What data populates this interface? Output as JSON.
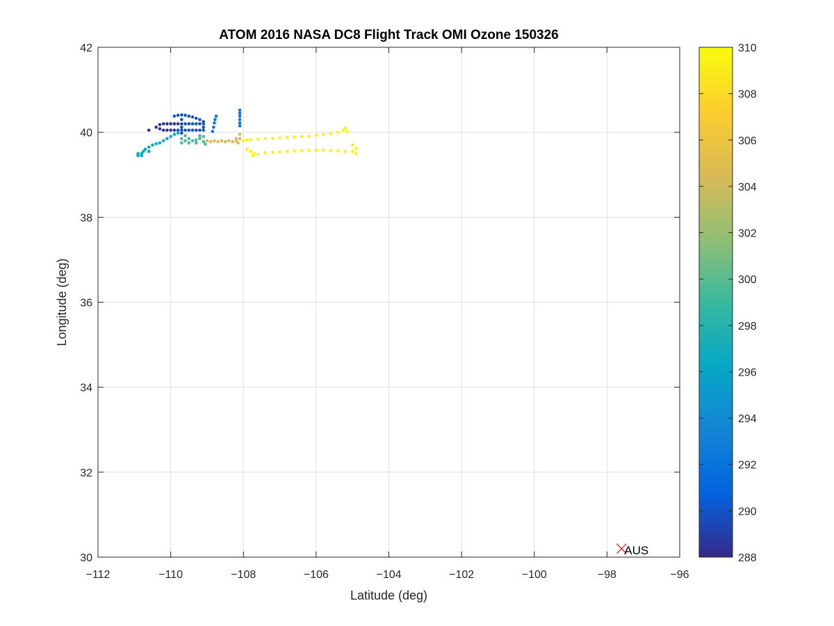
{
  "chart_data": {
    "type": "scatter",
    "title": "ATOM 2016 NASA DC8 Flight Track OMI Ozone 150326",
    "xlabel": "Latitude (deg)",
    "ylabel": "Longitude (deg)",
    "xlim": [
      -112,
      -96
    ],
    "ylim": [
      30,
      42
    ],
    "xticks": [
      -112,
      -110,
      -108,
      -106,
      -104,
      -102,
      -100,
      -98,
      -96
    ],
    "yticks": [
      30,
      32,
      34,
      36,
      38,
      40,
      42
    ],
    "xtick_labels": [
      "−112",
      "−110",
      "−108",
      "−106",
      "−104",
      "−102",
      "−100",
      "−98",
      "−96"
    ],
    "ytick_labels": [
      "30",
      "32",
      "34",
      "36",
      "38",
      "40",
      "42"
    ],
    "grid": true,
    "colormap": "parula",
    "colorbar": {
      "label": "",
      "clim": [
        288,
        310
      ],
      "ticks": [
        288,
        290,
        292,
        294,
        296,
        298,
        300,
        302,
        304,
        306,
        308,
        310
      ],
      "colors": [
        "#352a87",
        "#0363e1",
        "#1485d4",
        "#06a7c6",
        "#38b99e",
        "#92bf73",
        "#d9ba56",
        "#fcce2e",
        "#f9fb0e"
      ]
    },
    "marker_annotations": [
      {
        "label": "AUS",
        "x": -97.6,
        "y": 30.2,
        "marker": "x",
        "color": "#ff0000"
      }
    ],
    "series": [
      {
        "value": 288.5,
        "points": [
          [
            -110.6,
            40.05
          ],
          [
            -110.4,
            40.12
          ],
          [
            -110.3,
            40.18
          ],
          [
            -110.2,
            40.2
          ],
          [
            -110.1,
            40.2
          ],
          [
            -110.0,
            40.2
          ],
          [
            -109.9,
            40.2
          ],
          [
            -109.8,
            40.2
          ],
          [
            -110.3,
            40.08
          ],
          [
            -110.2,
            40.05
          ],
          [
            -110.1,
            40.05
          ],
          [
            -110.0,
            40.05
          ],
          [
            -109.9,
            40.05
          ]
        ]
      },
      {
        "value": 290,
        "points": [
          [
            -109.7,
            40.2
          ],
          [
            -109.6,
            40.2
          ],
          [
            -109.5,
            40.2
          ],
          [
            -109.4,
            40.2
          ],
          [
            -109.3,
            40.2
          ],
          [
            -109.2,
            40.2
          ],
          [
            -109.1,
            40.2
          ],
          [
            -109.8,
            40.05
          ],
          [
            -109.7,
            40.05
          ],
          [
            -109.6,
            40.05
          ],
          [
            -109.5,
            40.05
          ],
          [
            -109.4,
            40.05
          ],
          [
            -109.3,
            40.05
          ],
          [
            -109.2,
            40.05
          ],
          [
            -109.1,
            40.05
          ],
          [
            -109.1,
            40.12
          ],
          [
            -109.1,
            40.25
          ],
          [
            -109.2,
            40.3
          ],
          [
            -109.3,
            40.33
          ],
          [
            -109.4,
            40.36
          ],
          [
            -109.5,
            40.38
          ],
          [
            -109.6,
            40.4
          ],
          [
            -109.7,
            40.41
          ],
          [
            -109.8,
            40.4
          ],
          [
            -109.9,
            40.38
          ],
          [
            -109.7,
            40.3
          ],
          [
            -109.7,
            40.12
          ],
          [
            -109.7,
            39.98
          ]
        ]
      },
      {
        "value": 292.5,
        "points": [
          [
            -108.75,
            40.38
          ],
          [
            -108.78,
            40.3
          ],
          [
            -108.8,
            40.22
          ],
          [
            -108.82,
            40.12
          ],
          [
            -108.85,
            40.02
          ],
          [
            -108.1,
            40.52
          ],
          [
            -108.1,
            40.45
          ],
          [
            -108.1,
            40.38
          ],
          [
            -108.1,
            40.3
          ],
          [
            -108.1,
            40.22
          ],
          [
            -108.1,
            40.15
          ]
        ]
      },
      {
        "value": 296.5,
        "points": [
          [
            -110.9,
            39.45
          ],
          [
            -110.9,
            39.5
          ],
          [
            -110.8,
            39.45
          ],
          [
            -110.75,
            39.55
          ],
          [
            -110.7,
            39.6
          ],
          [
            -110.6,
            39.65
          ],
          [
            -110.5,
            39.7
          ],
          [
            -110.4,
            39.73
          ],
          [
            -110.3,
            39.75
          ],
          [
            -110.2,
            39.8
          ],
          [
            -110.1,
            39.85
          ],
          [
            -110.0,
            39.9
          ],
          [
            -109.9,
            39.95
          ],
          [
            -109.8,
            39.98
          ],
          [
            -110.6,
            39.55
          ],
          [
            -110.8,
            39.5
          ]
        ]
      },
      {
        "value": 299.5,
        "points": [
          [
            -109.7,
            39.85
          ],
          [
            -109.6,
            39.8
          ],
          [
            -109.5,
            39.85
          ],
          [
            -109.4,
            39.8
          ],
          [
            -109.3,
            39.82
          ],
          [
            -109.2,
            39.85
          ],
          [
            -109.1,
            39.78
          ],
          [
            -109.05,
            39.72
          ],
          [
            -109.7,
            39.75
          ],
          [
            -109.5,
            39.75
          ],
          [
            -109.3,
            39.75
          ],
          [
            -109.1,
            39.9
          ],
          [
            -109.2,
            39.92
          ],
          [
            -109.6,
            39.92
          ]
        ]
      },
      {
        "value": 304.5,
        "points": [
          [
            -109.0,
            39.8
          ],
          [
            -108.9,
            39.78
          ],
          [
            -108.8,
            39.8
          ],
          [
            -108.7,
            39.78
          ],
          [
            -108.6,
            39.8
          ],
          [
            -108.5,
            39.78
          ],
          [
            -108.4,
            39.8
          ],
          [
            -108.3,
            39.78
          ],
          [
            -108.2,
            39.8
          ],
          [
            -108.15,
            39.75
          ],
          [
            -108.1,
            39.85
          ],
          [
            -108.1,
            39.95
          ],
          [
            -108.2,
            39.85
          ]
        ]
      },
      {
        "value": 309.5,
        "points": [
          [
            -108.0,
            39.8
          ],
          [
            -107.9,
            39.82
          ],
          [
            -107.8,
            39.55
          ],
          [
            -107.7,
            39.5
          ],
          [
            -107.6,
            39.48
          ],
          [
            -107.75,
            39.45
          ],
          [
            -107.9,
            39.6
          ],
          [
            -107.8,
            39.83
          ],
          [
            -107.6,
            39.84
          ],
          [
            -107.4,
            39.85
          ],
          [
            -107.2,
            39.86
          ],
          [
            -107.0,
            39.87
          ],
          [
            -106.8,
            39.88
          ],
          [
            -106.6,
            39.89
          ],
          [
            -106.4,
            39.9
          ],
          [
            -106.2,
            39.91
          ],
          [
            -106.0,
            39.93
          ],
          [
            -105.8,
            39.95
          ],
          [
            -105.6,
            39.97
          ],
          [
            -105.4,
            40.0
          ],
          [
            -105.25,
            40.05
          ],
          [
            -105.2,
            40.1
          ],
          [
            -105.15,
            40.02
          ],
          [
            -107.4,
            39.52
          ],
          [
            -107.2,
            39.53
          ],
          [
            -107.0,
            39.54
          ],
          [
            -106.8,
            39.55
          ],
          [
            -106.6,
            39.56
          ],
          [
            -106.4,
            39.57
          ],
          [
            -106.2,
            39.57
          ],
          [
            -106.0,
            39.58
          ],
          [
            -105.8,
            39.58
          ],
          [
            -105.6,
            39.57
          ],
          [
            -105.4,
            39.56
          ],
          [
            -105.2,
            39.55
          ],
          [
            -105.0,
            39.55
          ],
          [
            -104.9,
            39.5
          ],
          [
            -104.9,
            39.62
          ],
          [
            -105.0,
            39.7
          ]
        ]
      }
    ]
  }
}
